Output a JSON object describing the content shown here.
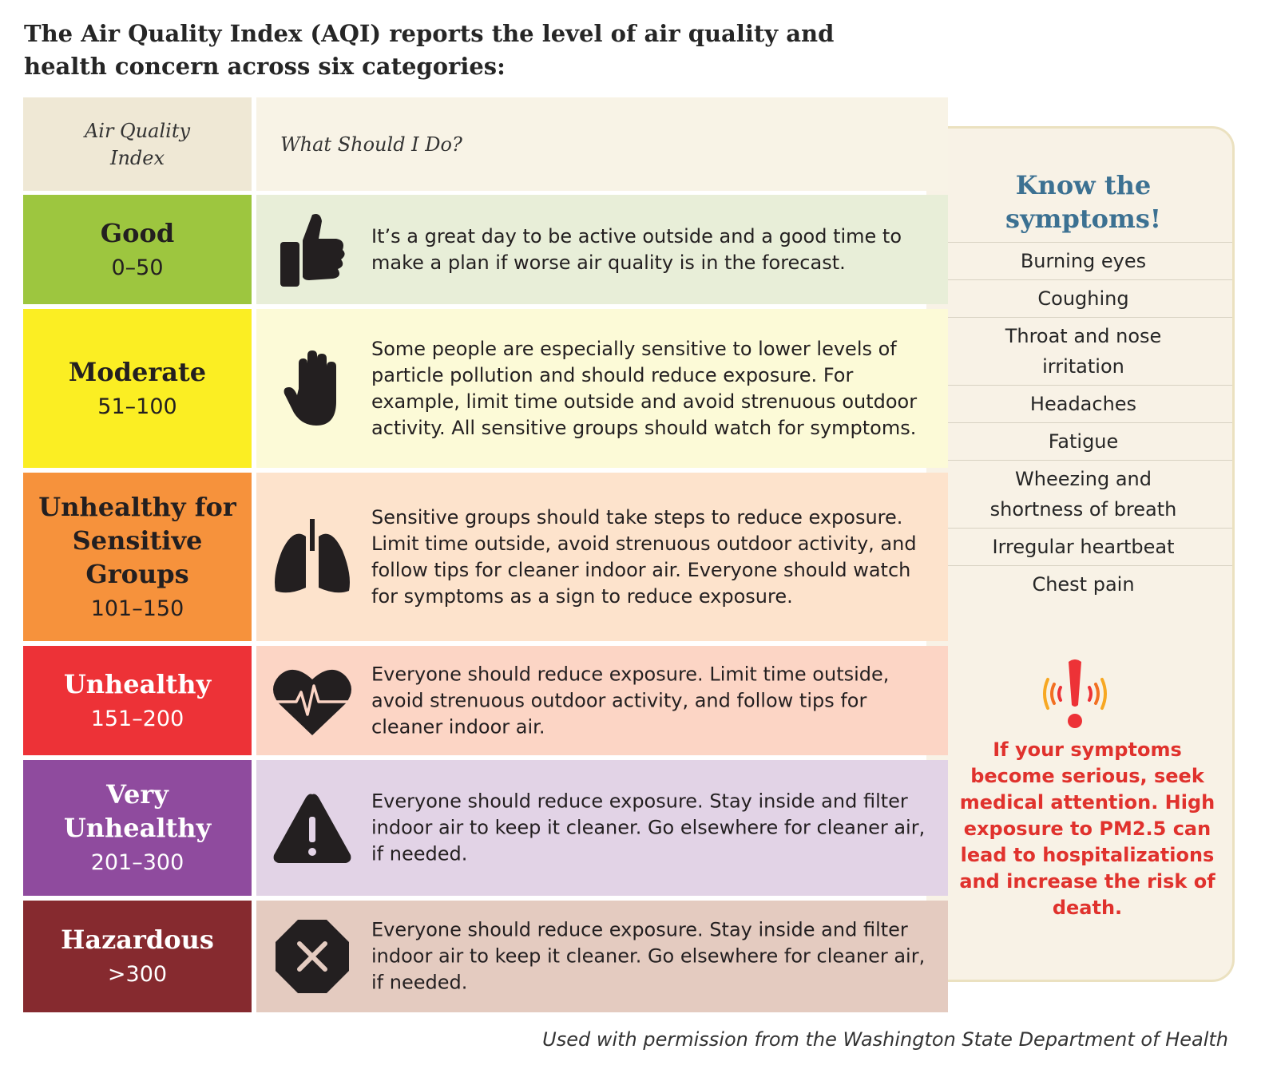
{
  "title": "The Air Quality Index (AQI) reports the level of air quality and health concern across six categories:",
  "table": {
    "header": {
      "category": "Air Quality Index",
      "action": "What Should I Do?"
    },
    "rows": [
      {
        "name": "Good",
        "range": "0–50",
        "icon": "thumbs-up-icon",
        "text": "It’s a great day to be active outside and a good time to make a plan if worse air quality is in the forecast.",
        "color": "#9dc63f",
        "tint": "#e8eed8",
        "name_color": "#231f20"
      },
      {
        "name": "Moderate",
        "range": "51–100",
        "icon": "raised-hand-icon",
        "text": "Some people are especially sensitive to lower levels of particle pollution and should reduce exposure. For example, limit time outside and avoid strenuous outdoor activity. All sensitive groups should watch for symptoms.",
        "color": "#fbee23",
        "tint": "#fcfad7",
        "name_color": "#231f20"
      },
      {
        "name": "Unhealthy for Sensitive Groups",
        "range": "101–150",
        "icon": "lungs-icon",
        "text": "Sensitive groups should take steps to reduce exposure. Limit time outside, avoid strenuous outdoor activity, and follow tips for cleaner indoor air.  Everyone should watch for symptoms as a sign to reduce exposure.",
        "color": "#f6923c",
        "tint": "#fde3cc",
        "name_color": "#231f20"
      },
      {
        "name": "Unhealthy",
        "range": "151–200",
        "icon": "heart-pulse-icon",
        "text": "Everyone should reduce exposure. Limit time outside, avoid strenuous outdoor activity, and follow tips for cleaner indoor air.",
        "color": "#ed3237",
        "tint": "#fcd5c5",
        "name_color": "#ffffff"
      },
      {
        "name": "Very Unhealthy",
        "range": "201–300",
        "icon": "warning-triangle-icon",
        "text": "Everyone should reduce exposure. Stay inside and filter indoor air to keep it cleaner. Go elsewhere for cleaner air, if needed.",
        "color": "#8f4b9e",
        "tint": "#e2d3e6",
        "name_color": "#ffffff"
      },
      {
        "name": "Hazardous",
        "range": ">300",
        "icon": "stop-octagon-icon",
        "text": "Everyone should reduce exposure. Stay inside and filter indoor air to keep it cleaner. Go elsewhere for cleaner air, if needed.",
        "color": "#862a2f",
        "tint": "#e4cbc0",
        "name_color": "#ffffff"
      }
    ]
  },
  "side": {
    "title": "Know the symptoms!",
    "symptoms": [
      "Burning eyes",
      "Coughing",
      "Throat and nose irritation",
      "Headaches",
      "Fatigue",
      "Wheezing and shortness of breath",
      "Irregular heartbeat",
      "Chest pain"
    ],
    "alert_icon": "exclamation-alert-icon",
    "warning": "If your symptoms become serious, seek medical attention. High exposure to PM2.5 can lead to hospitalizations and increase the risk of death."
  },
  "credit": "Used with permission from the Washington State Department of Health",
  "colors": {
    "header_bg": "#efe8d5",
    "header_act_bg": "#f8f3e6",
    "icon": "#231f20",
    "side_title": "#3c7192",
    "warning": "#e0322d"
  }
}
